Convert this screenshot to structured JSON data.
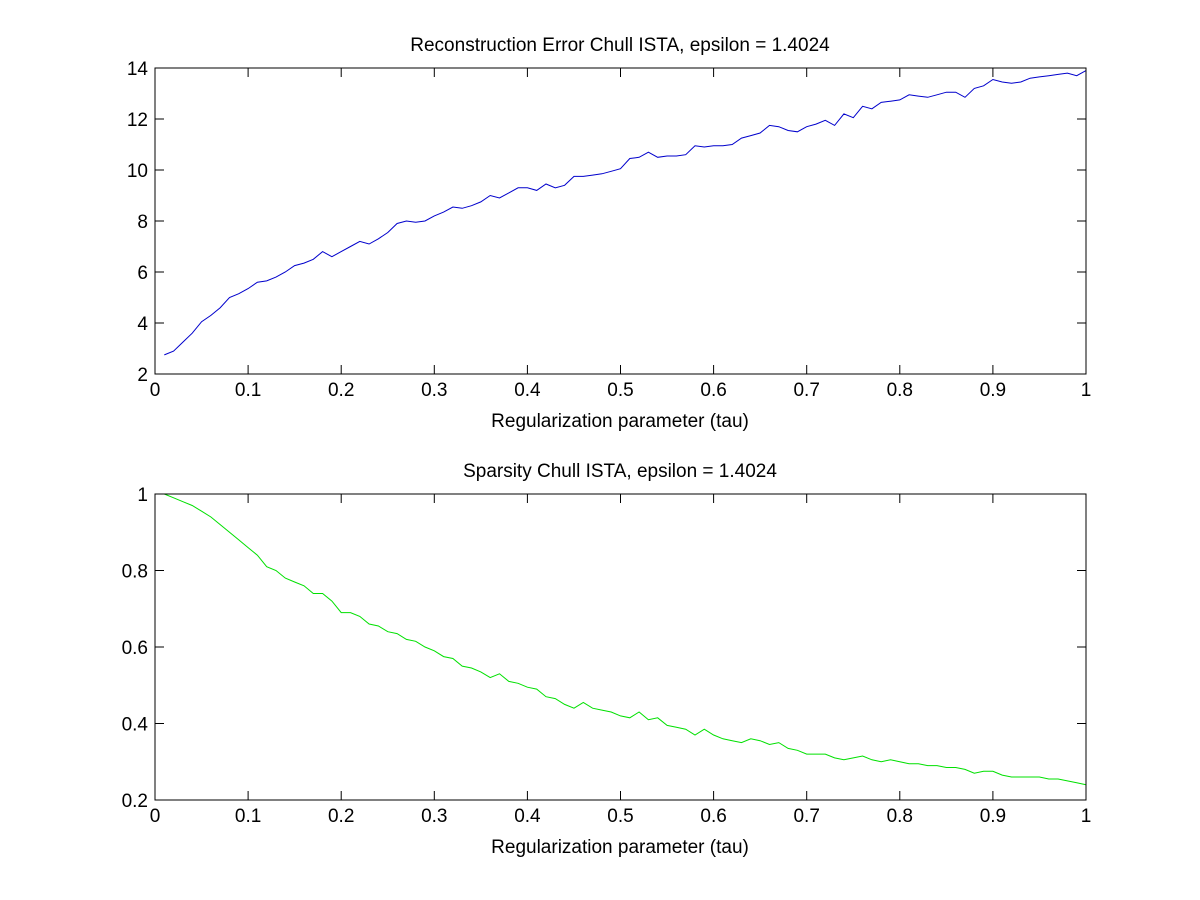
{
  "chart_data": [
    {
      "type": "line",
      "title": "Reconstruction Error Chull ISTA, epsilon = 1.4024",
      "xlabel": "Regularization parameter (tau)",
      "ylabel": "",
      "xlim": [
        0,
        1
      ],
      "ylim": [
        2,
        14
      ],
      "xticks": [
        0,
        0.1,
        0.2,
        0.3,
        0.4,
        0.5,
        0.6,
        0.7,
        0.8,
        0.9,
        1
      ],
      "xtick_labels": [
        "0",
        "0.1",
        "0.2",
        "0.3",
        "0.4",
        "0.5",
        "0.6",
        "0.7",
        "0.8",
        "0.9",
        "1"
      ],
      "yticks": [
        2,
        4,
        6,
        8,
        10,
        12,
        14
      ],
      "ytick_labels": [
        "2",
        "4",
        "6",
        "8",
        "10",
        "12",
        "14"
      ],
      "grid": false,
      "color": "#0000cc",
      "x": [
        0.01,
        0.02,
        0.03,
        0.04,
        0.05,
        0.06,
        0.07,
        0.08,
        0.09,
        0.1,
        0.11,
        0.12,
        0.13,
        0.14,
        0.15,
        0.16,
        0.17,
        0.18,
        0.19,
        0.2,
        0.21,
        0.22,
        0.23,
        0.24,
        0.25,
        0.26,
        0.27,
        0.28,
        0.29,
        0.3,
        0.31,
        0.32,
        0.33,
        0.34,
        0.35,
        0.36,
        0.37,
        0.38,
        0.39,
        0.4,
        0.41,
        0.42,
        0.43,
        0.44,
        0.45,
        0.46,
        0.47,
        0.48,
        0.49,
        0.5,
        0.51,
        0.52,
        0.53,
        0.54,
        0.55,
        0.56,
        0.57,
        0.58,
        0.59,
        0.6,
        0.61,
        0.62,
        0.63,
        0.64,
        0.65,
        0.66,
        0.67,
        0.68,
        0.69,
        0.7,
        0.71,
        0.72,
        0.73,
        0.74,
        0.75,
        0.76,
        0.77,
        0.78,
        0.79,
        0.8,
        0.81,
        0.82,
        0.83,
        0.84,
        0.85,
        0.86,
        0.87,
        0.88,
        0.89,
        0.9,
        0.91,
        0.92,
        0.93,
        0.94,
        0.95,
        0.96,
        0.97,
        0.98,
        0.99,
        1.0
      ],
      "y": [
        2.75,
        2.9,
        3.25,
        3.6,
        4.05,
        4.3,
        4.6,
        5.0,
        5.15,
        5.35,
        5.6,
        5.65,
        5.8,
        6.0,
        6.25,
        6.35,
        6.5,
        6.8,
        6.6,
        6.8,
        7.0,
        7.2,
        7.1,
        7.3,
        7.55,
        7.9,
        8.0,
        7.95,
        8.0,
        8.2,
        8.35,
        8.55,
        8.5,
        8.6,
        8.75,
        9.0,
        8.9,
        9.1,
        9.3,
        9.3,
        9.2,
        9.45,
        9.3,
        9.4,
        9.75,
        9.75,
        9.8,
        9.85,
        9.95,
        10.05,
        10.45,
        10.5,
        10.7,
        10.5,
        10.55,
        10.55,
        10.6,
        10.95,
        10.9,
        10.95,
        10.95,
        11.0,
        11.25,
        11.35,
        11.45,
        11.75,
        11.7,
        11.55,
        11.5,
        11.7,
        11.8,
        11.95,
        11.75,
        12.2,
        12.05,
        12.5,
        12.4,
        12.65,
        12.7,
        12.75,
        12.95,
        12.9,
        12.85,
        12.95,
        13.05,
        13.05,
        12.85,
        13.2,
        13.3,
        13.55,
        13.45,
        13.4,
        13.45,
        13.6,
        13.65,
        13.7,
        13.75,
        13.8,
        13.7,
        13.9
      ]
    },
    {
      "type": "line",
      "title": "Sparsity Chull ISTA, epsilon = 1.4024",
      "xlabel": "Regularization parameter (tau)",
      "ylabel": "",
      "xlim": [
        0,
        1
      ],
      "ylim": [
        0.2,
        1
      ],
      "xticks": [
        0,
        0.1,
        0.2,
        0.3,
        0.4,
        0.5,
        0.6,
        0.7,
        0.8,
        0.9,
        1
      ],
      "xtick_labels": [
        "0",
        "0.1",
        "0.2",
        "0.3",
        "0.4",
        "0.5",
        "0.6",
        "0.7",
        "0.8",
        "0.9",
        "1"
      ],
      "yticks": [
        0.2,
        0.4,
        0.6,
        0.8,
        1
      ],
      "ytick_labels": [
        "0.2",
        "0.4",
        "0.6",
        "0.8",
        "1"
      ],
      "grid": false,
      "color": "#00e000",
      "x": [
        0.01,
        0.02,
        0.03,
        0.04,
        0.05,
        0.06,
        0.07,
        0.08,
        0.09,
        0.1,
        0.11,
        0.12,
        0.13,
        0.14,
        0.15,
        0.16,
        0.17,
        0.18,
        0.19,
        0.2,
        0.21,
        0.22,
        0.23,
        0.24,
        0.25,
        0.26,
        0.27,
        0.28,
        0.29,
        0.3,
        0.31,
        0.32,
        0.33,
        0.34,
        0.35,
        0.36,
        0.37,
        0.38,
        0.39,
        0.4,
        0.41,
        0.42,
        0.43,
        0.44,
        0.45,
        0.46,
        0.47,
        0.48,
        0.49,
        0.5,
        0.51,
        0.52,
        0.53,
        0.54,
        0.55,
        0.56,
        0.57,
        0.58,
        0.59,
        0.6,
        0.61,
        0.62,
        0.63,
        0.64,
        0.65,
        0.66,
        0.67,
        0.68,
        0.69,
        0.7,
        0.71,
        0.72,
        0.73,
        0.74,
        0.75,
        0.76,
        0.77,
        0.78,
        0.79,
        0.8,
        0.81,
        0.82,
        0.83,
        0.84,
        0.85,
        0.86,
        0.87,
        0.88,
        0.89,
        0.9,
        0.91,
        0.92,
        0.93,
        0.94,
        0.95,
        0.96,
        0.97,
        0.98,
        0.99,
        1.0
      ],
      "y": [
        1.0,
        0.99,
        0.98,
        0.97,
        0.955,
        0.94,
        0.92,
        0.9,
        0.88,
        0.86,
        0.84,
        0.81,
        0.8,
        0.78,
        0.77,
        0.76,
        0.74,
        0.74,
        0.72,
        0.69,
        0.69,
        0.68,
        0.66,
        0.655,
        0.64,
        0.635,
        0.62,
        0.615,
        0.6,
        0.59,
        0.575,
        0.57,
        0.55,
        0.545,
        0.535,
        0.52,
        0.53,
        0.51,
        0.505,
        0.495,
        0.49,
        0.47,
        0.465,
        0.45,
        0.44,
        0.455,
        0.44,
        0.435,
        0.43,
        0.42,
        0.415,
        0.43,
        0.41,
        0.415,
        0.395,
        0.39,
        0.385,
        0.37,
        0.385,
        0.37,
        0.36,
        0.355,
        0.35,
        0.36,
        0.355,
        0.345,
        0.35,
        0.335,
        0.33,
        0.32,
        0.32,
        0.32,
        0.31,
        0.305,
        0.31,
        0.315,
        0.305,
        0.3,
        0.305,
        0.3,
        0.295,
        0.295,
        0.29,
        0.29,
        0.285,
        0.285,
        0.28,
        0.27,
        0.275,
        0.275,
        0.265,
        0.26,
        0.26,
        0.26,
        0.26,
        0.255,
        0.255,
        0.25,
        0.245,
        0.24
      ]
    }
  ]
}
